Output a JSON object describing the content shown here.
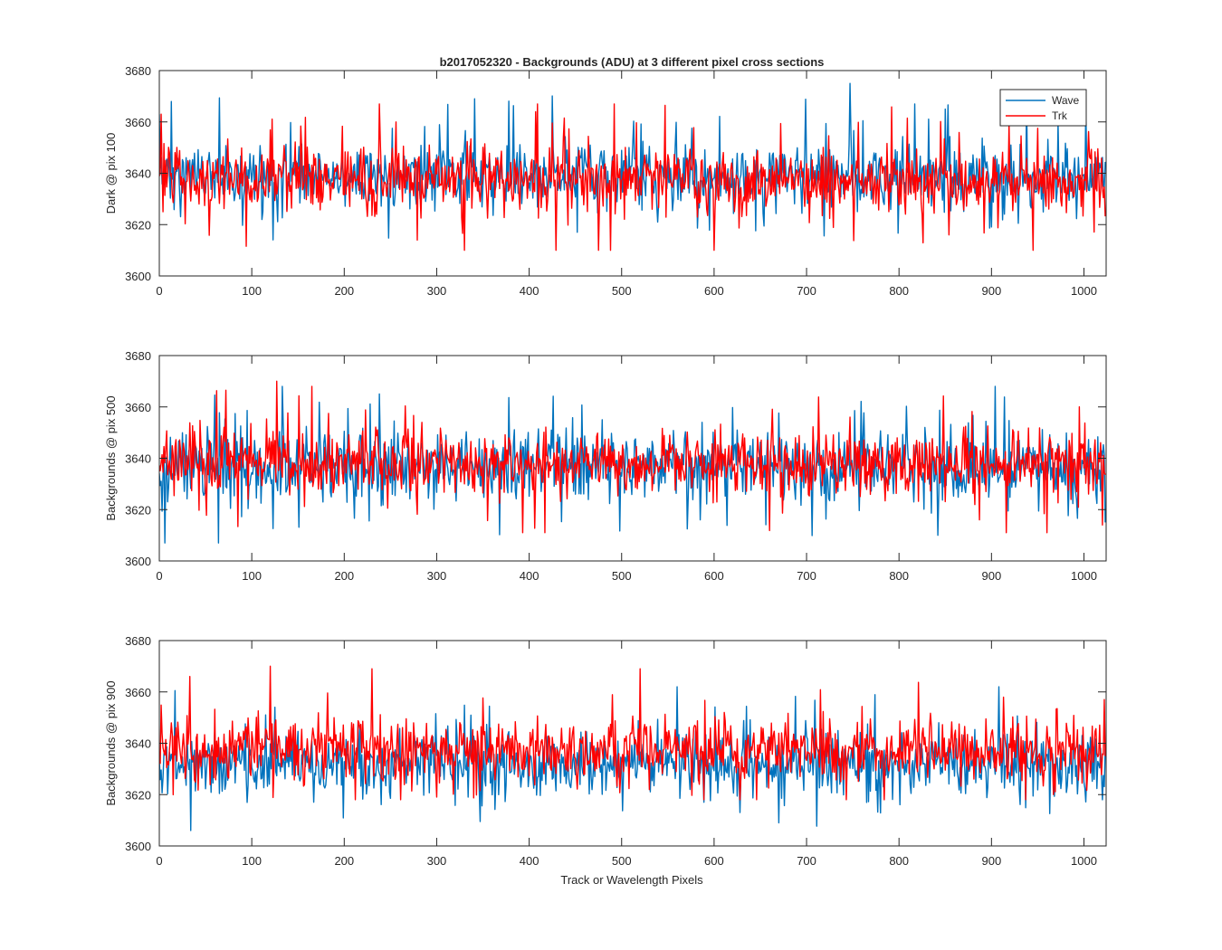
{
  "figure": {
    "title": "b2017052320 - Backgrounds (ADU) at 3 different pixel cross sections",
    "xlabel": "Track or Wavelength Pixels"
  },
  "legend": {
    "placement": "top-right",
    "entries": [
      "Wave",
      "Trk"
    ]
  },
  "colors": {
    "Wave": "#0072BD",
    "Trk": "#FF0000",
    "axes": "#262626"
  },
  "chart_data": [
    {
      "type": "line",
      "ylabel": "Dark @ pix 100",
      "xlim": [
        0,
        1024
      ],
      "ylim": [
        3600,
        3680
      ],
      "xticks": [
        0,
        100,
        200,
        300,
        400,
        500,
        600,
        700,
        800,
        900,
        1000
      ],
      "yticks": [
        3600,
        3620,
        3640,
        3660,
        3680
      ],
      "grid": false,
      "series": [
        {
          "name": "Wave",
          "n": 1024,
          "mean": 3639,
          "spread": 8,
          "min": 3612,
          "max": 3675,
          "features": [
            [
              747,
              3675
            ],
            [
              341,
              3669
            ],
            [
              817,
              3667
            ],
            [
              850,
              3665
            ],
            [
              0,
              3663
            ]
          ]
        },
        {
          "name": "Trk",
          "n": 1024,
          "mean": 3638,
          "spread": 8,
          "min": 3610,
          "max": 3667,
          "features": [
            [
              2,
              3663
            ],
            [
              238,
              3667
            ],
            [
              407,
              3664
            ],
            [
              945,
              3610
            ],
            [
              330,
              3610
            ],
            [
              488,
              3610
            ],
            [
              600,
              3610
            ]
          ]
        }
      ]
    },
    {
      "type": "line",
      "ylabel": "Backgrounds @ pix 500",
      "xlim": [
        0,
        1024
      ],
      "ylim": [
        3600,
        3680
      ],
      "xticks": [
        0,
        100,
        200,
        300,
        400,
        500,
        600,
        700,
        800,
        900,
        1000
      ],
      "yticks": [
        3600,
        3620,
        3640,
        3660,
        3680
      ],
      "grid": false,
      "series": [
        {
          "name": "Wave",
          "n": 1024,
          "mean": 3637,
          "spread": 9,
          "min": 3607,
          "max": 3668,
          "features": [
            [
              6,
              3607
            ],
            [
              904,
              3668
            ],
            [
              842,
              3610
            ],
            [
              1023,
              3615
            ]
          ]
        },
        {
          "name": "Trk",
          "n": 1024,
          "mean": 3638,
          "spread": 8,
          "min": 3611,
          "max": 3670,
          "features": [
            [
              127,
              3670
            ],
            [
              165,
              3668
            ],
            [
              393,
              3611
            ],
            [
              1020,
              3614
            ]
          ]
        }
      ]
    },
    {
      "type": "line",
      "ylabel": "Backgrounds @ pix 900",
      "xlim": [
        0,
        1024
      ],
      "ylim": [
        3600,
        3680
      ],
      "xticks": [
        0,
        100,
        200,
        300,
        400,
        500,
        600,
        700,
        800,
        900,
        1000
      ],
      "yticks": [
        3600,
        3620,
        3640,
        3660,
        3680
      ],
      "grid": false,
      "series": [
        {
          "name": "Wave",
          "n": 1024,
          "mean": 3632,
          "spread": 8,
          "min": 3606,
          "max": 3662,
          "features": [
            [
              34,
              3606
            ],
            [
              670,
              3609
            ],
            [
              908,
              3662
            ],
            [
              560,
              3662
            ],
            [
              1020,
              3618
            ]
          ]
        },
        {
          "name": "Trk",
          "n": 1024,
          "mean": 3638,
          "spread": 8,
          "min": 3618,
          "max": 3670,
          "features": [
            [
              120,
              3670
            ],
            [
              230,
              3669
            ],
            [
              520,
              3669
            ],
            [
              33,
              3666
            ],
            [
              1022,
              3657
            ]
          ]
        }
      ]
    }
  ]
}
